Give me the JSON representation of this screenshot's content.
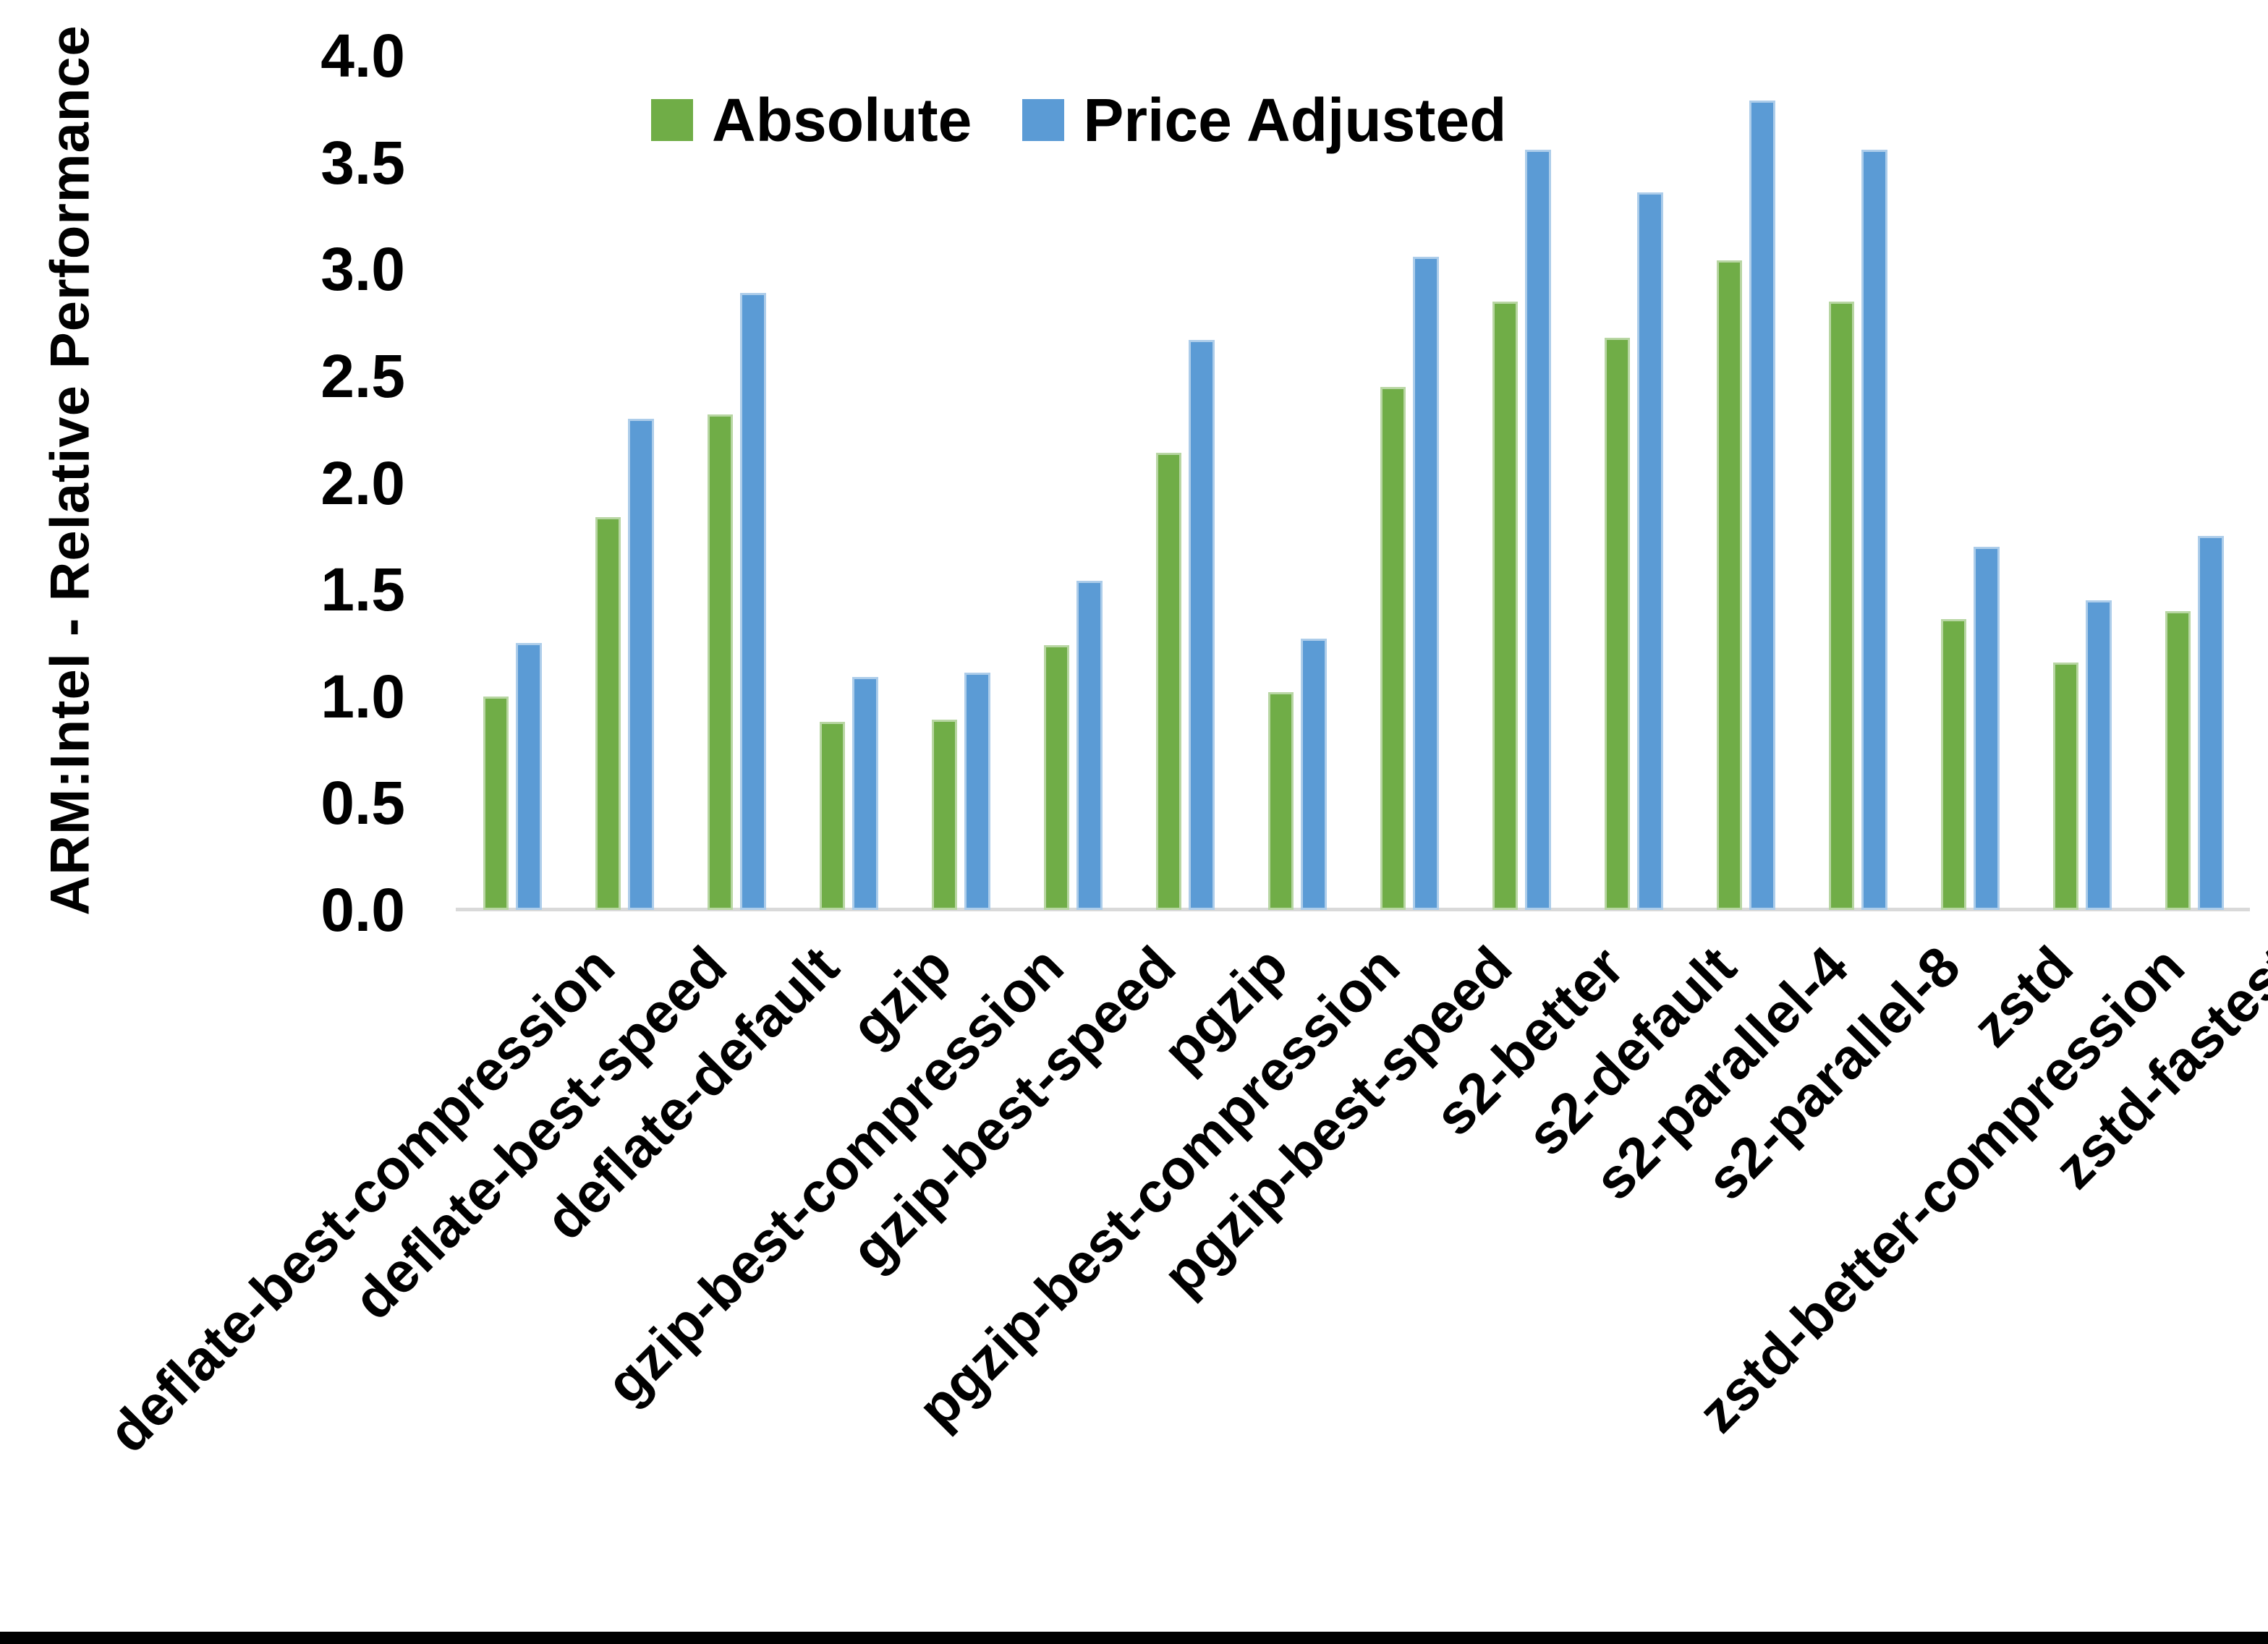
{
  "chart_data": {
    "type": "bar",
    "title": "",
    "xlabel": "",
    "ylabel": "ARM:Intel - Relative Performance",
    "ylim": [
      0.0,
      4.0
    ],
    "ytick_labels": [
      "0.0",
      "0.5",
      "1.0",
      "1.5",
      "2.0",
      "2.5",
      "3.0",
      "3.5",
      "4.0"
    ],
    "grid": false,
    "legend_position": "top-center",
    "axis_line_color": "#d9d9d9",
    "categories": [
      "deflate-best-compression",
      "deflate-best-speed",
      "deflate-default",
      "gzip",
      "gzip-best-compression",
      "gzip-best-speed",
      "pgzip",
      "pgzip-best-compression",
      "pgzip-best-speed",
      "s2-better",
      "s2-default",
      "s2-parallel-4",
      "s2-parallel-8",
      "zstd",
      "zstd-better-compression",
      "zstd-fastest"
    ],
    "series": [
      {
        "name": "Absolute",
        "color": "#70AD47",
        "values": [
          1.0,
          1.84,
          2.32,
          0.88,
          0.89,
          1.24,
          2.14,
          1.02,
          2.45,
          2.85,
          2.68,
          3.04,
          2.85,
          1.36,
          1.16,
          1.4
        ]
      },
      {
        "name": "Price Adjusted",
        "color": "#5B9BD5",
        "values": [
          1.25,
          2.3,
          2.89,
          1.09,
          1.11,
          1.54,
          2.67,
          1.27,
          3.06,
          3.56,
          3.36,
          3.79,
          3.56,
          1.7,
          1.45,
          1.75
        ]
      }
    ]
  }
}
